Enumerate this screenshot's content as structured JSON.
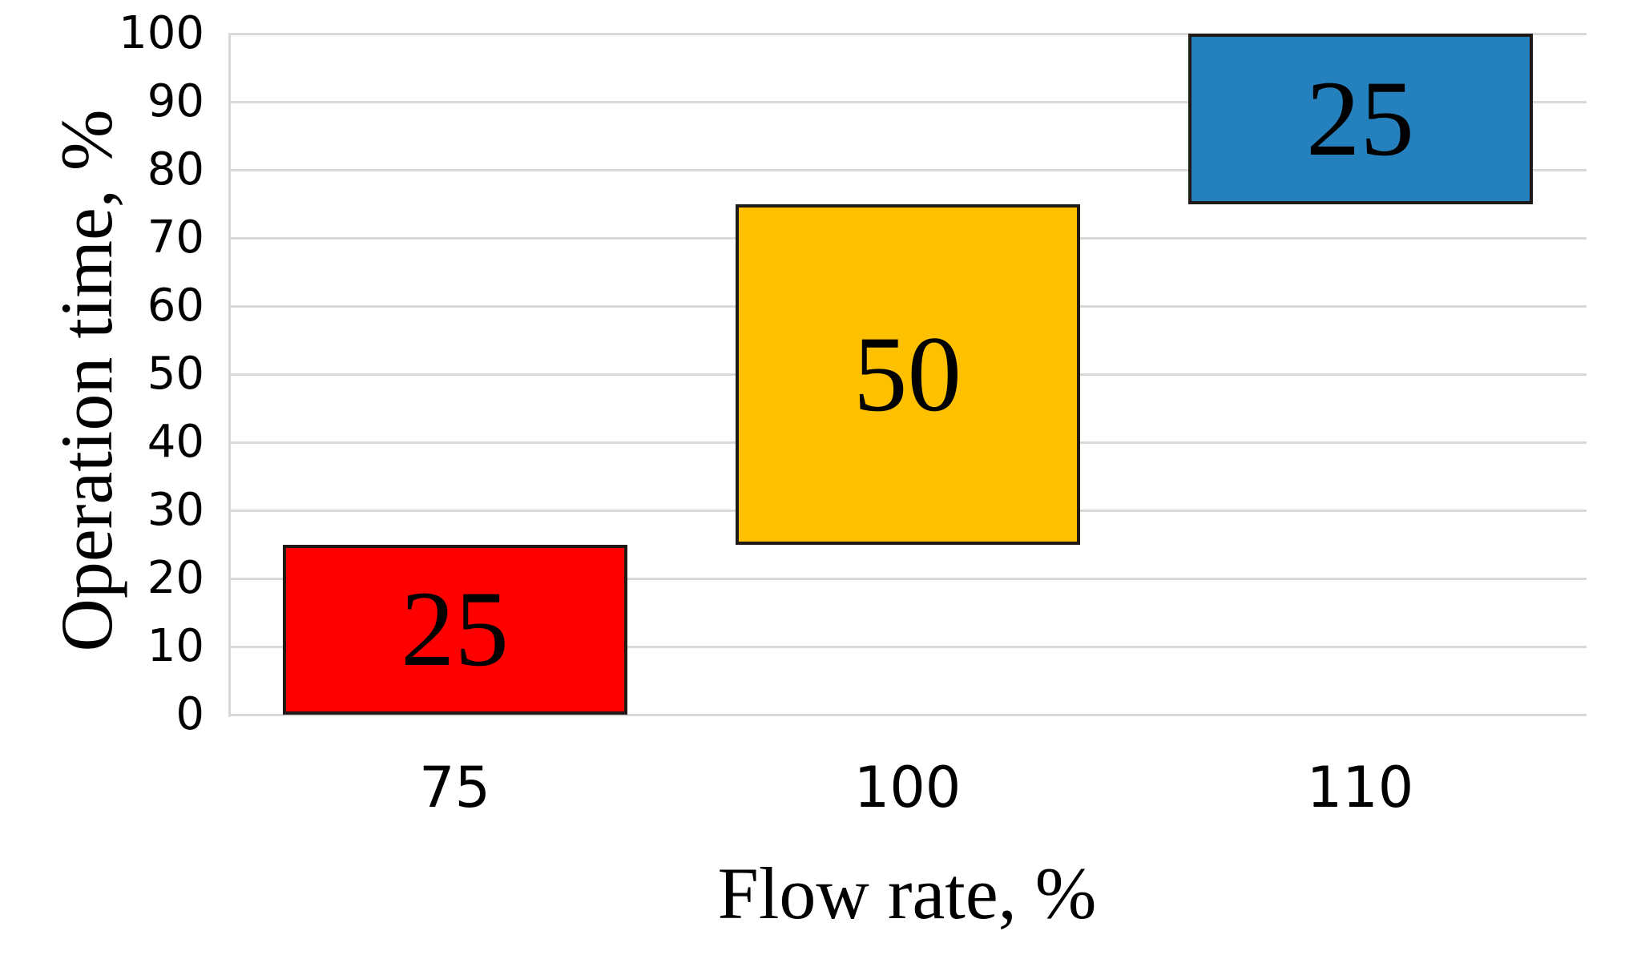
{
  "chart_data": {
    "type": "bar",
    "subtype": "floating-column",
    "title": "",
    "xlabel": "Flow rate, %",
    "ylabel": "Operation time, %",
    "categories": [
      "75",
      "100",
      "110"
    ],
    "ytick_labels": [
      "0",
      "10",
      "20",
      "30",
      "40",
      "50",
      "60",
      "70",
      "80",
      "90",
      "100"
    ],
    "ytick_values": [
      0,
      10,
      20,
      30,
      40,
      50,
      60,
      70,
      80,
      90,
      100
    ],
    "ylim": [
      0,
      100
    ],
    "grid": "horizontal",
    "legend": "none",
    "bars": [
      {
        "category": "75",
        "from": 0,
        "to": 25,
        "value": 25,
        "label": "25",
        "color": "#FF0000"
      },
      {
        "category": "100",
        "from": 25,
        "to": 75,
        "value": 50,
        "label": "50",
        "color": "#FFC000"
      },
      {
        "category": "110",
        "from": 75,
        "to": 100,
        "value": 25,
        "label": "25",
        "color": "#2580BE"
      }
    ],
    "colors": {
      "gridline": "#D9D9D9",
      "bar_border": "#1F1A17",
      "text": "#000000",
      "background": "#FFFFFF"
    }
  }
}
